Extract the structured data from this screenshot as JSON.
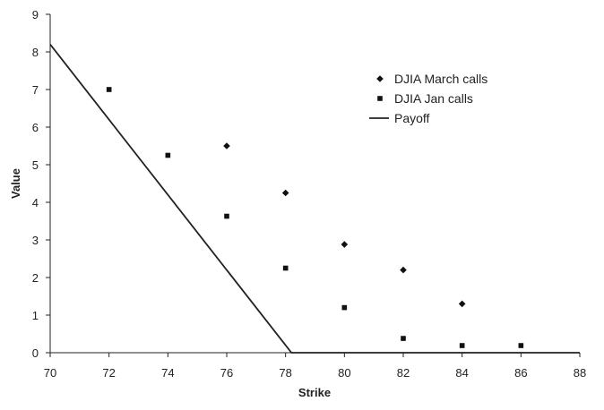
{
  "chart_data": {
    "type": "scatter",
    "title": "",
    "xlabel": "Strike",
    "ylabel": "Value",
    "xlim": [
      70,
      88
    ],
    "ylim": [
      0,
      9
    ],
    "xticks": [
      "70",
      "72",
      "74",
      "76",
      "78",
      "80",
      "82",
      "84",
      "86",
      "88"
    ],
    "yticks": [
      "0",
      "1",
      "2",
      "3",
      "4",
      "5",
      "6",
      "7",
      "8",
      "9"
    ],
    "grid": false,
    "legend_position": "top-right",
    "series": [
      {
        "name": "DJIA March calls",
        "marker": "diamond",
        "points": [
          {
            "x": 76,
            "y": 5.5
          },
          {
            "x": 78,
            "y": 4.25
          },
          {
            "x": 80,
            "y": 2.88
          },
          {
            "x": 82,
            "y": 2.2
          },
          {
            "x": 84,
            "y": 1.3
          }
        ]
      },
      {
        "name": "DJIA Jan calls",
        "marker": "square",
        "points": [
          {
            "x": 72,
            "y": 7.0
          },
          {
            "x": 74,
            "y": 5.25
          },
          {
            "x": 76,
            "y": 3.63
          },
          {
            "x": 78,
            "y": 2.25
          },
          {
            "x": 80,
            "y": 1.2
          },
          {
            "x": 82,
            "y": 0.38
          },
          {
            "x": 84,
            "y": 0.19
          },
          {
            "x": 86,
            "y": 0.19
          }
        ]
      },
      {
        "name": "Payoff",
        "marker": "line",
        "points": [
          {
            "x": 70,
            "y": 8.2
          },
          {
            "x": 78.2,
            "y": 0
          },
          {
            "x": 88,
            "y": 0
          }
        ]
      }
    ]
  }
}
